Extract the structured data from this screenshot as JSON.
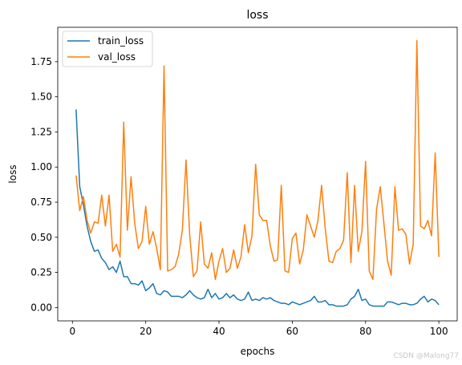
{
  "watermark": "CSDN @Malong77",
  "chart_data": {
    "type": "line",
    "title": "loss",
    "xlabel": "epochs",
    "ylabel": "loss",
    "xlim": [
      -4,
      105
    ],
    "ylim": [
      -0.095,
      1.995
    ],
    "xticks": [
      0,
      20,
      40,
      60,
      80,
      100
    ],
    "xtick_labels": [
      "0",
      "20",
      "40",
      "60",
      "80",
      "100"
    ],
    "yticks": [
      0.0,
      0.25,
      0.5,
      0.75,
      1.0,
      1.25,
      1.5,
      1.75
    ],
    "ytick_labels": [
      "0.00",
      "0.25",
      "0.50",
      "0.75",
      "1.00",
      "1.25",
      "1.50",
      "1.75"
    ],
    "grid": false,
    "legend": "top-left",
    "x": [
      1,
      2,
      3,
      4,
      5,
      6,
      7,
      8,
      9,
      10,
      11,
      12,
      13,
      14,
      15,
      16,
      17,
      18,
      19,
      20,
      21,
      22,
      23,
      24,
      25,
      26,
      27,
      28,
      29,
      30,
      31,
      32,
      33,
      34,
      35,
      36,
      37,
      38,
      39,
      40,
      41,
      42,
      43,
      44,
      45,
      46,
      47,
      48,
      49,
      50,
      51,
      52,
      53,
      54,
      55,
      56,
      57,
      58,
      59,
      60,
      61,
      62,
      63,
      64,
      65,
      66,
      67,
      68,
      69,
      70,
      71,
      72,
      73,
      74,
      75,
      76,
      77,
      78,
      79,
      80,
      81,
      82,
      83,
      84,
      85,
      86,
      87,
      88,
      89,
      90,
      91,
      92,
      93,
      94,
      95,
      96,
      97,
      98,
      99,
      100
    ],
    "series": [
      {
        "name": "train_loss",
        "color": "#1f77b4",
        "values": [
          1.41,
          0.86,
          0.73,
          0.58,
          0.47,
          0.4,
          0.41,
          0.35,
          0.32,
          0.27,
          0.29,
          0.25,
          0.33,
          0.22,
          0.22,
          0.17,
          0.17,
          0.16,
          0.19,
          0.12,
          0.14,
          0.17,
          0.1,
          0.09,
          0.12,
          0.11,
          0.08,
          0.08,
          0.08,
          0.07,
          0.09,
          0.12,
          0.09,
          0.07,
          0.06,
          0.07,
          0.13,
          0.07,
          0.1,
          0.06,
          0.07,
          0.1,
          0.07,
          0.09,
          0.06,
          0.05,
          0.06,
          0.11,
          0.05,
          0.06,
          0.05,
          0.07,
          0.06,
          0.07,
          0.05,
          0.04,
          0.03,
          0.03,
          0.02,
          0.04,
          0.03,
          0.02,
          0.03,
          0.04,
          0.05,
          0.08,
          0.04,
          0.04,
          0.05,
          0.02,
          0.02,
          0.01,
          0.01,
          0.01,
          0.02,
          0.06,
          0.08,
          0.13,
          0.05,
          0.06,
          0.02,
          0.01,
          0.01,
          0.01,
          0.01,
          0.04,
          0.04,
          0.03,
          0.02,
          0.03,
          0.03,
          0.02,
          0.02,
          0.03,
          0.06,
          0.08,
          0.04,
          0.06,
          0.05,
          0.02
        ]
      },
      {
        "name": "val_loss",
        "color": "#ff7f0e",
        "values": [
          0.94,
          0.69,
          0.79,
          0.62,
          0.53,
          0.61,
          0.6,
          0.8,
          0.58,
          0.8,
          0.4,
          0.45,
          0.36,
          1.32,
          0.55,
          0.93,
          0.6,
          0.42,
          0.47,
          0.72,
          0.45,
          0.54,
          0.42,
          0.27,
          1.72,
          0.26,
          0.27,
          0.29,
          0.38,
          0.55,
          1.05,
          0.52,
          0.22,
          0.26,
          0.61,
          0.31,
          0.28,
          0.39,
          0.2,
          0.33,
          0.42,
          0.25,
          0.28,
          0.41,
          0.28,
          0.36,
          0.59,
          0.39,
          0.51,
          1.02,
          0.66,
          0.62,
          0.62,
          0.44,
          0.33,
          0.34,
          0.87,
          0.26,
          0.25,
          0.49,
          0.53,
          0.31,
          0.41,
          0.66,
          0.58,
          0.5,
          0.62,
          0.87,
          0.56,
          0.33,
          0.32,
          0.4,
          0.42,
          0.48,
          0.96,
          0.32,
          0.87,
          0.4,
          0.54,
          1.04,
          0.26,
          0.2,
          0.7,
          0.86,
          0.6,
          0.33,
          0.23,
          0.86,
          0.55,
          0.56,
          0.52,
          0.31,
          0.45,
          1.9,
          0.58,
          0.56,
          0.62,
          0.51,
          1.1,
          0.36
        ]
      }
    ]
  }
}
